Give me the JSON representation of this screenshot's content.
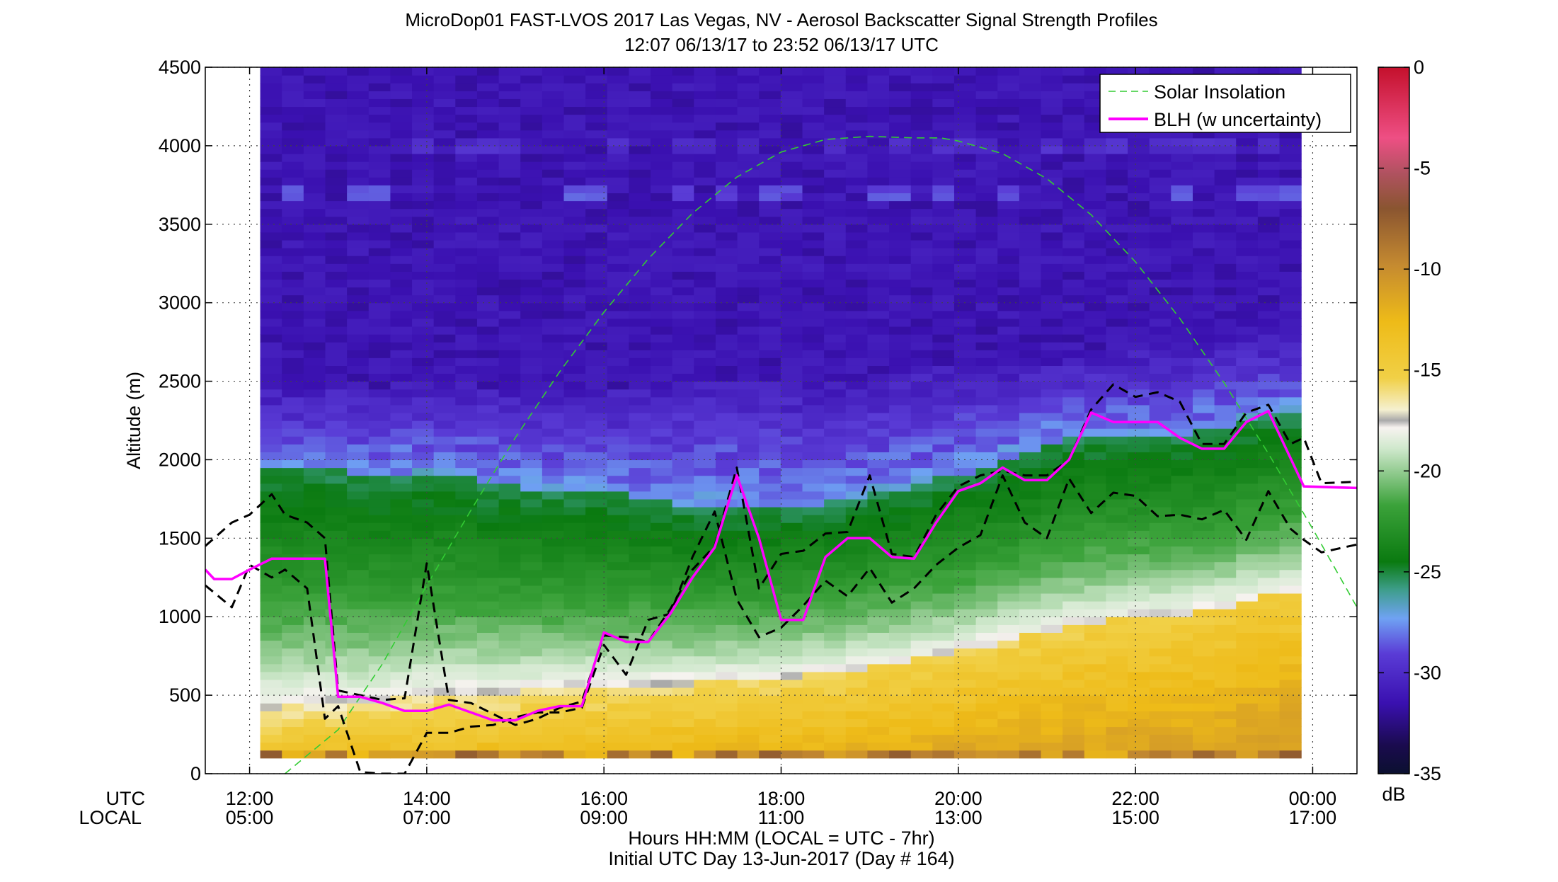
{
  "figure": {
    "title_line1": "MicroDop01 FAST-LVOS 2017 Las Vegas, NV - Aerosol Backscatter Signal Strength Profiles",
    "title_line2": "12:07 06/13/17 to 23:52 06/13/17  UTC",
    "xlabel_line1": "Hours HH:MM  (LOCAL = UTC - 7hr)",
    "xlabel_line2": "Initial UTC Day 13-Jun-2017 (Day # 164)",
    "row_label_utc": "UTC",
    "row_label_local": "LOCAL",
    "ylabel": "Altitude (m)",
    "colorbar_unit": "dB"
  },
  "chart_data": {
    "type": "heatmap",
    "title": "MicroDop01 FAST-LVOS 2017 Las Vegas, NV - Aerosol Backscatter Signal Strength Profiles",
    "subtitle": "12:07 06/13/17 to 23:52 06/13/17  UTC",
    "xlabel": "Hours HH:MM  (LOCAL = UTC - 7hr)",
    "ylabel": "Altitude (m)",
    "xlim_hours_utc": [
      11.5,
      24.5
    ],
    "ylim": [
      0,
      4500
    ],
    "grid": true,
    "legend_position": "top-right",
    "x_ticks": [
      {
        "hour": 12,
        "utc": "12:00",
        "local": "05:00"
      },
      {
        "hour": 14,
        "utc": "14:00",
        "local": "07:00"
      },
      {
        "hour": 16,
        "utc": "16:00",
        "local": "09:00"
      },
      {
        "hour": 18,
        "utc": "18:00",
        "local": "11:00"
      },
      {
        "hour": 20,
        "utc": "20:00",
        "local": "13:00"
      },
      {
        "hour": 22,
        "utc": "22:00",
        "local": "15:00"
      },
      {
        "hour": 24,
        "utc": "00:00",
        "local": "17:00"
      }
    ],
    "y_ticks": [
      0,
      500,
      1000,
      1500,
      2000,
      2500,
      3000,
      3500,
      4000,
      4500
    ],
    "colorbar": {
      "unit": "dB",
      "range": [
        -35,
        0
      ],
      "ticks": [
        0,
        -5,
        -10,
        -15,
        -20,
        -25,
        -30,
        -35
      ]
    },
    "heatmap": {
      "x_start_hour": 12.12,
      "x_end_hour": 23.87,
      "n_columns": 48,
      "value_units": "dB",
      "ml_top_m": [
        1950,
        1950,
        1950,
        1930,
        1900,
        1880,
        1900,
        1920,
        1900,
        1880,
        1850,
        1830,
        1820,
        1800,
        1800,
        1790,
        1780,
        1760,
        1740,
        1720,
        1710,
        1710,
        1700,
        1700,
        1700,
        1720,
        1730,
        1760,
        1780,
        1820,
        1850,
        1880,
        1920,
        1960,
        2000,
        2050,
        2100,
        2130,
        2150,
        2160,
        2170,
        2170,
        2170,
        2180,
        2200,
        2250,
        2280,
        2300
      ],
      "aerosol_top_m": [
        2450,
        2450,
        2450,
        2480,
        2480,
        2470,
        2480,
        2500,
        2500,
        2480,
        2470,
        2450,
        2450,
        2450,
        2450,
        2460,
        2460,
        2470,
        2500,
        2520,
        2520,
        2520,
        2520,
        2500,
        2480,
        2480,
        2500,
        2520,
        2540,
        2550,
        2580,
        2600,
        2620,
        2600,
        2590,
        2600,
        2620,
        2640,
        2660,
        2680,
        2700,
        2700,
        2700,
        2720,
        2740,
        2760,
        2780,
        2800
      ]
    },
    "series": [
      {
        "name": "Solar Insolation",
        "color": "#33cc33",
        "style": "dashed",
        "x": [
          12.4,
          13.0,
          13.5,
          14.0,
          14.5,
          15.0,
          15.5,
          16.0,
          16.5,
          17.0,
          17.5,
          18.0,
          18.5,
          19.0,
          19.5,
          19.8,
          20.0,
          20.5,
          21.0,
          21.5,
          22.0,
          22.5,
          23.0,
          23.5,
          24.0,
          24.5
        ],
        "y": [
          0,
          280,
          700,
          1200,
          1680,
          2140,
          2560,
          2940,
          3280,
          3570,
          3800,
          3960,
          4040,
          4060,
          4050,
          4050,
          4030,
          3950,
          3790,
          3560,
          3260,
          2900,
          2490,
          2040,
          1560,
          1060
        ]
      },
      {
        "name": "BLH (w uncertainty)",
        "color": "#ff00ff",
        "style": "solid",
        "x": [
          11.5,
          11.6,
          11.8,
          12.0,
          12.25,
          12.5,
          12.65,
          12.85,
          13.0,
          13.25,
          13.5,
          13.75,
          14.0,
          14.25,
          14.5,
          14.75,
          15.0,
          15.25,
          15.5,
          15.75,
          16.0,
          16.25,
          16.5,
          16.75,
          17.0,
          17.25,
          17.5,
          17.75,
          18.0,
          18.25,
          18.5,
          18.75,
          19.0,
          19.25,
          19.5,
          19.75,
          20.0,
          20.25,
          20.5,
          20.75,
          21.0,
          21.25,
          21.5,
          21.75,
          22.0,
          22.25,
          22.5,
          22.75,
          23.0,
          23.25,
          23.5,
          23.9,
          24.5
        ],
        "y": [
          1300,
          1240,
          1240,
          1300,
          1370,
          1370,
          1370,
          1370,
          490,
          490,
          450,
          400,
          400,
          440,
          390,
          340,
          340,
          400,
          430,
          430,
          900,
          840,
          840,
          1020,
          1250,
          1440,
          1900,
          1500,
          980,
          980,
          1380,
          1500,
          1500,
          1380,
          1370,
          1600,
          1800,
          1850,
          1950,
          1870,
          1870,
          2000,
          2300,
          2240,
          2240,
          2240,
          2140,
          2070,
          2070,
          2240,
          2310,
          1830,
          1820
        ]
      },
      {
        "name": "BLH upper bound",
        "color": "#000000",
        "style": "dashed",
        "x": [
          11.5,
          11.8,
          12.0,
          12.25,
          12.4,
          12.65,
          12.85,
          13.0,
          13.25,
          13.5,
          13.75,
          14.0,
          14.25,
          14.5,
          14.75,
          15.0,
          15.25,
          15.5,
          15.75,
          16.0,
          16.25,
          16.5,
          16.75,
          17.0,
          17.25,
          17.5,
          17.75,
          18.0,
          18.25,
          18.5,
          18.75,
          19.0,
          19.25,
          19.5,
          19.75,
          20.0,
          20.25,
          20.5,
          20.75,
          21.0,
          21.25,
          21.5,
          21.75,
          22.0,
          22.25,
          22.5,
          22.75,
          23.0,
          23.25,
          23.5,
          23.75,
          23.9,
          24.1,
          24.5
        ],
        "y": [
          1450,
          1600,
          1650,
          1780,
          1650,
          1600,
          1500,
          530,
          500,
          470,
          480,
          1340,
          470,
          450,
          380,
          310,
          350,
          420,
          460,
          880,
          870,
          840,
          1050,
          1300,
          1450,
          1950,
          1180,
          1400,
          1420,
          1530,
          1540,
          1900,
          1400,
          1380,
          1650,
          1830,
          1900,
          1930,
          1900,
          1900,
          2000,
          2320,
          2480,
          2400,
          2430,
          2370,
          2100,
          2100,
          2300,
          2350,
          2100,
          2140,
          1850,
          1860
        ]
      },
      {
        "name": "BLH lower bound",
        "color": "#000000",
        "style": "dashed",
        "x": [
          11.5,
          11.8,
          12.0,
          12.25,
          12.4,
          12.65,
          12.85,
          13.0,
          13.25,
          13.5,
          13.75,
          14.0,
          14.25,
          14.5,
          14.75,
          15.0,
          15.25,
          15.5,
          15.75,
          16.0,
          16.25,
          16.5,
          16.75,
          17.0,
          17.25,
          17.5,
          17.75,
          18.0,
          18.25,
          18.5,
          18.75,
          19.0,
          19.25,
          19.5,
          19.75,
          20.0,
          20.25,
          20.5,
          20.75,
          21.0,
          21.25,
          21.5,
          21.75,
          22.0,
          22.25,
          22.5,
          22.75,
          23.0,
          23.25,
          23.5,
          23.75,
          23.9,
          24.1,
          24.5
        ],
        "y": [
          1200,
          1060,
          1330,
          1250,
          1300,
          1180,
          350,
          430,
          10,
          0,
          0,
          260,
          260,
          300,
          310,
          360,
          390,
          390,
          420,
          820,
          630,
          980,
          1020,
          1380,
          1670,
          1110,
          870,
          930,
          1070,
          1230,
          1130,
          1310,
          1090,
          1180,
          1330,
          1440,
          1520,
          1900,
          1600,
          1500,
          1880,
          1660,
          1790,
          1770,
          1640,
          1650,
          1620,
          1680,
          1490,
          1800,
          1560,
          1490,
          1410,
          1460
        ]
      }
    ],
    "legend": [
      "Solar Insolation",
      "BLH (w uncertainty)"
    ]
  }
}
